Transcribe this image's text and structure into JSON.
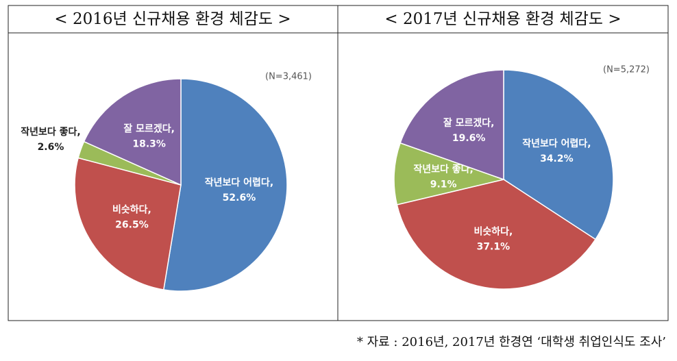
{
  "charts": [
    {
      "chart_data": {
        "type": "pie",
        "title": "< 2016년 신규채용 환경 체감도 >",
        "subtitle": "(N=3,461)",
        "categories": [
          "작년보다 어렵다,",
          "비슷하다,",
          "작년보다 좋다,",
          "잘 모르겠다,"
        ],
        "values": [
          52.6,
          26.5,
          2.6,
          18.3
        ],
        "value_labels": [
          "52.6%",
          "26.5%",
          "2.6%",
          "18.3%"
        ],
        "colors": [
          "#4f81bd",
          "#c0504d",
          "#9bbb59",
          "#8064a2"
        ]
      }
    },
    {
      "chart_data": {
        "type": "pie",
        "title": "< 2017년 신규채용 환경 체감도 >",
        "subtitle": "(N=5,272)",
        "categories": [
          "작년보다 어렵다,",
          "비슷하다,",
          "작년보다 좋다,",
          "잘 모르겠다,"
        ],
        "values": [
          34.2,
          37.1,
          9.1,
          19.6
        ],
        "value_labels": [
          "34.2%",
          "37.1%",
          "9.1%",
          "19.6%"
        ],
        "colors": [
          "#4f81bd",
          "#c0504d",
          "#9bbb59",
          "#8064a2"
        ]
      }
    }
  ],
  "footer": "* 자료 : 2016년, 2017년 한경연 ‘대학생 취업인식도 조사’"
}
